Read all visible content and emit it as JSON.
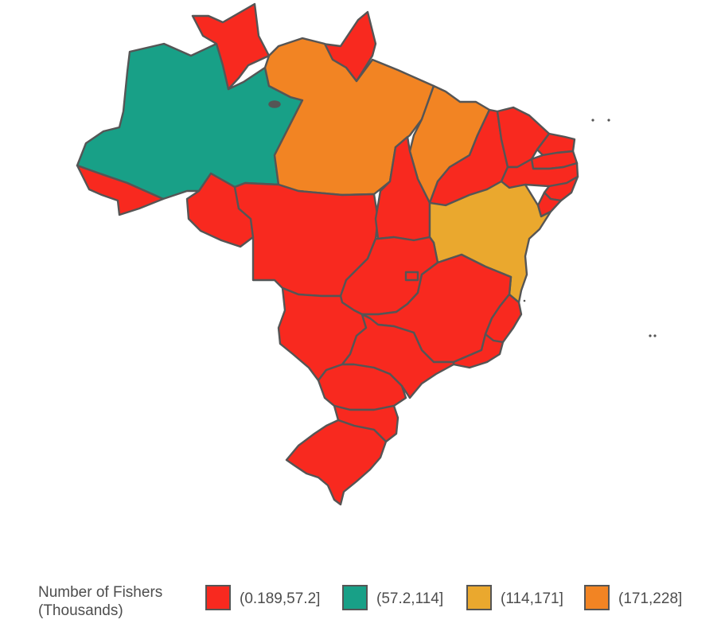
{
  "colors": {
    "bin1": "#F8291F",
    "bin2": "#18A087",
    "bin3": "#EAA82E",
    "bin4": "#F28423",
    "border": "#555555"
  },
  "map": {
    "states": [
      {
        "name": "Amazonas",
        "bin": "bin2"
      },
      {
        "name": "Pará",
        "bin": "bin4"
      },
      {
        "name": "Maranhão",
        "bin": "bin4"
      },
      {
        "name": "Bahia",
        "bin": "bin3"
      },
      {
        "name": "Roraima",
        "bin": "bin1"
      },
      {
        "name": "Amapá",
        "bin": "bin1"
      },
      {
        "name": "Acre",
        "bin": "bin1"
      },
      {
        "name": "Rondônia",
        "bin": "bin1"
      },
      {
        "name": "Mato Grosso",
        "bin": "bin1"
      },
      {
        "name": "Tocantins",
        "bin": "bin1"
      },
      {
        "name": "Piauí",
        "bin": "bin1"
      },
      {
        "name": "Ceará",
        "bin": "bin1"
      },
      {
        "name": "Rio Grande do Norte",
        "bin": "bin1"
      },
      {
        "name": "Paraíba",
        "bin": "bin1"
      },
      {
        "name": "Pernambuco",
        "bin": "bin1"
      },
      {
        "name": "Alagoas",
        "bin": "bin1"
      },
      {
        "name": "Sergipe",
        "bin": "bin1"
      },
      {
        "name": "Goiás",
        "bin": "bin1"
      },
      {
        "name": "Distrito Federal",
        "bin": "bin1"
      },
      {
        "name": "Mato Grosso do Sul",
        "bin": "bin1"
      },
      {
        "name": "Minas Gerais",
        "bin": "bin1"
      },
      {
        "name": "Espírito Santo",
        "bin": "bin1"
      },
      {
        "name": "Rio de Janeiro",
        "bin": "bin1"
      },
      {
        "name": "São Paulo",
        "bin": "bin1"
      },
      {
        "name": "Paraná",
        "bin": "bin1"
      },
      {
        "name": "Santa Catarina",
        "bin": "bin1"
      },
      {
        "name": "Rio Grande do Sul",
        "bin": "bin1"
      }
    ]
  },
  "legend": {
    "title": "Number of Fishers\n(Thousands)",
    "items": [
      {
        "label": "(0.189,57.2]",
        "color": "#F8291F"
      },
      {
        "label": "(57.2,114]",
        "color": "#18A087"
      },
      {
        "label": "(114,171]",
        "color": "#EAA82E"
      },
      {
        "label": "(171,228]",
        "color": "#F28423"
      }
    ]
  }
}
